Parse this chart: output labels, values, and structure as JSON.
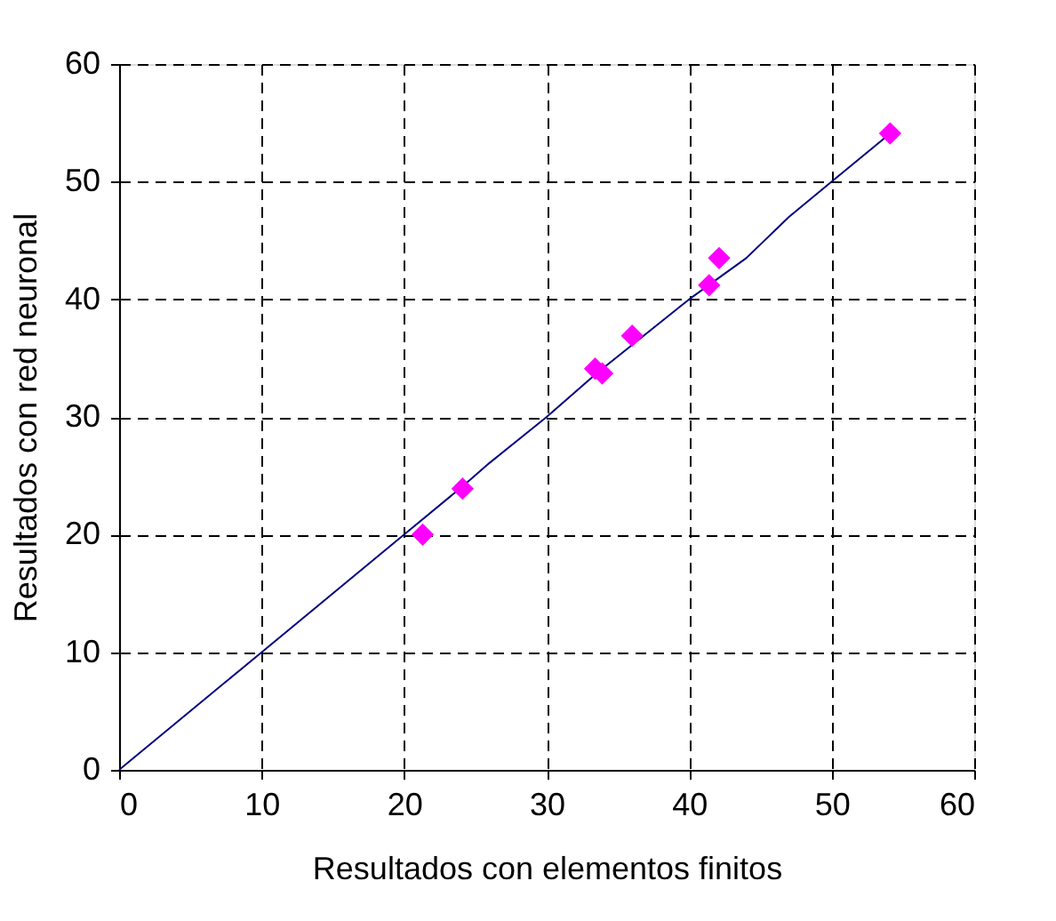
{
  "chart_data": {
    "type": "scatter",
    "xlabel": "Resultados con elementos finitos",
    "ylabel": "Resultados con red neuronal",
    "xlim": [
      0,
      60
    ],
    "ylim": [
      0,
      60
    ],
    "xticks": [
      0,
      10,
      20,
      30,
      40,
      50,
      60
    ],
    "yticks": [
      0,
      10,
      20,
      30,
      40,
      50,
      60
    ],
    "grid": true,
    "series": [
      {
        "type": "scatter",
        "color": "#ff00ff",
        "marker": "diamond",
        "x": [
          21.3,
          24.1,
          33.4,
          33.9,
          36.0,
          41.4,
          42.1,
          54.1
        ],
        "values": [
          20.0,
          23.9,
          34.1,
          33.7,
          36.9,
          41.2,
          43.5,
          54.1
        ]
      },
      {
        "type": "line",
        "color": "#000080",
        "x": [
          0,
          10,
          20,
          24,
          26,
          30,
          33.5,
          40,
          44,
          47,
          50,
          54
        ],
        "values": [
          0,
          10,
          20,
          24,
          26.1,
          30,
          33.7,
          40,
          43.5,
          47,
          50,
          54
        ]
      }
    ]
  }
}
